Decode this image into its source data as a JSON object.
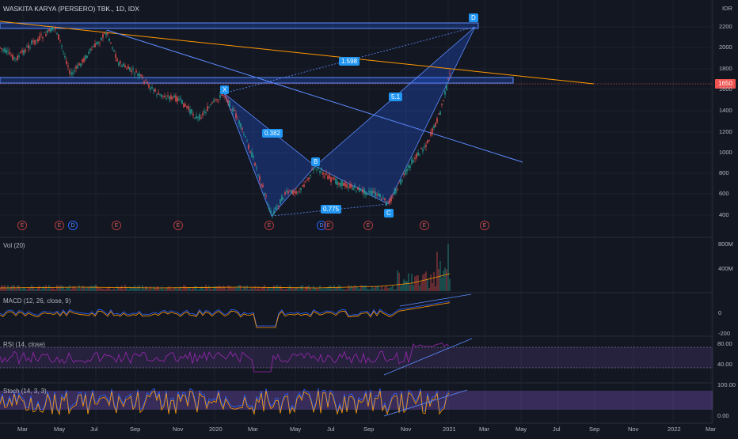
{
  "chart": {
    "title": "WASKITA KARYA (PERSERO) TBK., 1D, IDX",
    "currency": "IDR",
    "last_price": "1650"
  },
  "price_axis": [
    "2200",
    "2000",
    "1800",
    "1600",
    "1400",
    "1200",
    "1000",
    "800",
    "600",
    "400"
  ],
  "time_axis": [
    "Mar",
    "May",
    "Jul",
    "Sep",
    "Nov",
    "2020",
    "Mar",
    "May",
    "Jul",
    "Sep",
    "Nov",
    "2021",
    "Mar",
    "May",
    "Jul",
    "Sep",
    "Nov",
    "2022",
    "Mar"
  ],
  "pattern": {
    "points": [
      "X",
      "B",
      "C",
      "D"
    ],
    "ratios": [
      "0.382",
      "0.775",
      "1.598",
      "5.1"
    ]
  },
  "events": [
    "E",
    "E",
    "D",
    "E",
    "E",
    "E",
    "D",
    "E",
    "E",
    "E",
    "E"
  ],
  "panes": {
    "vol": {
      "label": "Vol (20)",
      "ticks": [
        "800M",
        "400M"
      ]
    },
    "macd": {
      "label": "MACD (12, 26, close, 9)",
      "ticks": [
        "0",
        "-200"
      ]
    },
    "rsi": {
      "label": "RSI (14, close)",
      "ticks": [
        "80.00",
        "40.00"
      ]
    },
    "stoch": {
      "label": "Stoch (14, 3, 3)",
      "ticks": [
        "100.00",
        "0.00"
      ]
    }
  },
  "colors": {
    "background": "#131722",
    "candle_up": "#26a69a",
    "candle_down": "#ef5350",
    "pattern_fill": "#2962ff",
    "trendline": "#ff9800",
    "rsi_line": "#9c27b0"
  }
}
